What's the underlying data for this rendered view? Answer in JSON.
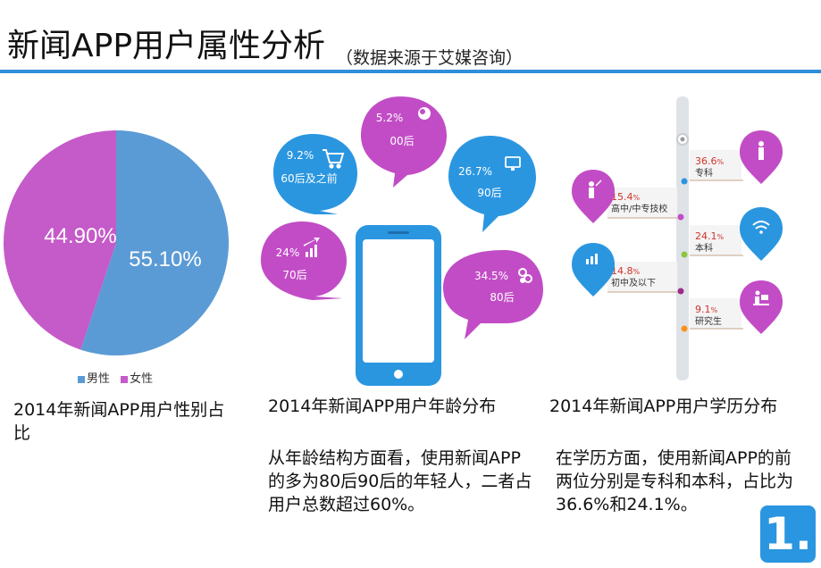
{
  "header": {
    "title": "新闻APP用户属性分析",
    "subtitle": "（数据来源于艾媒咨询）"
  },
  "gender": {
    "caption": "2014年新闻APP用户性别占比",
    "male_label": "55.10%",
    "female_label": "44.90%",
    "legend": [
      {
        "name": "男性",
        "color": "#5b9bd5"
      },
      {
        "name": "女性",
        "color": "#c55ac9"
      }
    ]
  },
  "chart_data": {
    "type": "pie",
    "slices": [
      {
        "name": "男性",
        "value": 55.1,
        "color": "#5b9bd5"
      },
      {
        "name": "女性",
        "value": 44.9,
        "color": "#c55ac9"
      }
    ]
  },
  "age": {
    "caption": "2014年新闻APP用户年龄分布",
    "paragraph": "从年龄结构方面看，使用新闻APP的多为80后90后的年轻人，二者占用户总数超过60%。",
    "bubbles": [
      {
        "pct": "5.2%",
        "label": "00后",
        "color": "#c24cc6",
        "icon": "globe-icon"
      },
      {
        "pct": "9.2%",
        "label": "60后及之前",
        "color": "#2b96e0",
        "icon": "cart-icon"
      },
      {
        "pct": "26.7%",
        "label": "90后",
        "color": "#2b96e0",
        "icon": "monitor-icon"
      },
      {
        "pct": "24%",
        "label": "70后",
        "color": "#c24cc6",
        "icon": "bar-chart-icon"
      },
      {
        "pct": "34.5%",
        "label": "80后",
        "color": "#c24cc6",
        "icon": "link-icon"
      }
    ]
  },
  "education": {
    "caption": "2014年新闻APP用户学历分布",
    "paragraph": "在学历方面，使用新闻APP的前两位分别是专科和本科，占比为36.6%和24.1%。",
    "items": [
      {
        "pct": "36.6",
        "unit": "%",
        "label": "专科",
        "dot": "#2b96e0"
      },
      {
        "pct": "15.4",
        "unit": "%",
        "label": "高中/中专技校",
        "dot": "#c24cc6"
      },
      {
        "pct": "24.1",
        "unit": "%",
        "label": "本科",
        "dot": "#8cc63f"
      },
      {
        "pct": "14.8",
        "unit": "%",
        "label": "初中及以下",
        "dot": "#9c2b8a"
      },
      {
        "pct": "9.1",
        "unit": "%",
        "label": "研究生",
        "dot": "#f7941d"
      }
    ]
  },
  "badge": {
    "label": "1."
  }
}
